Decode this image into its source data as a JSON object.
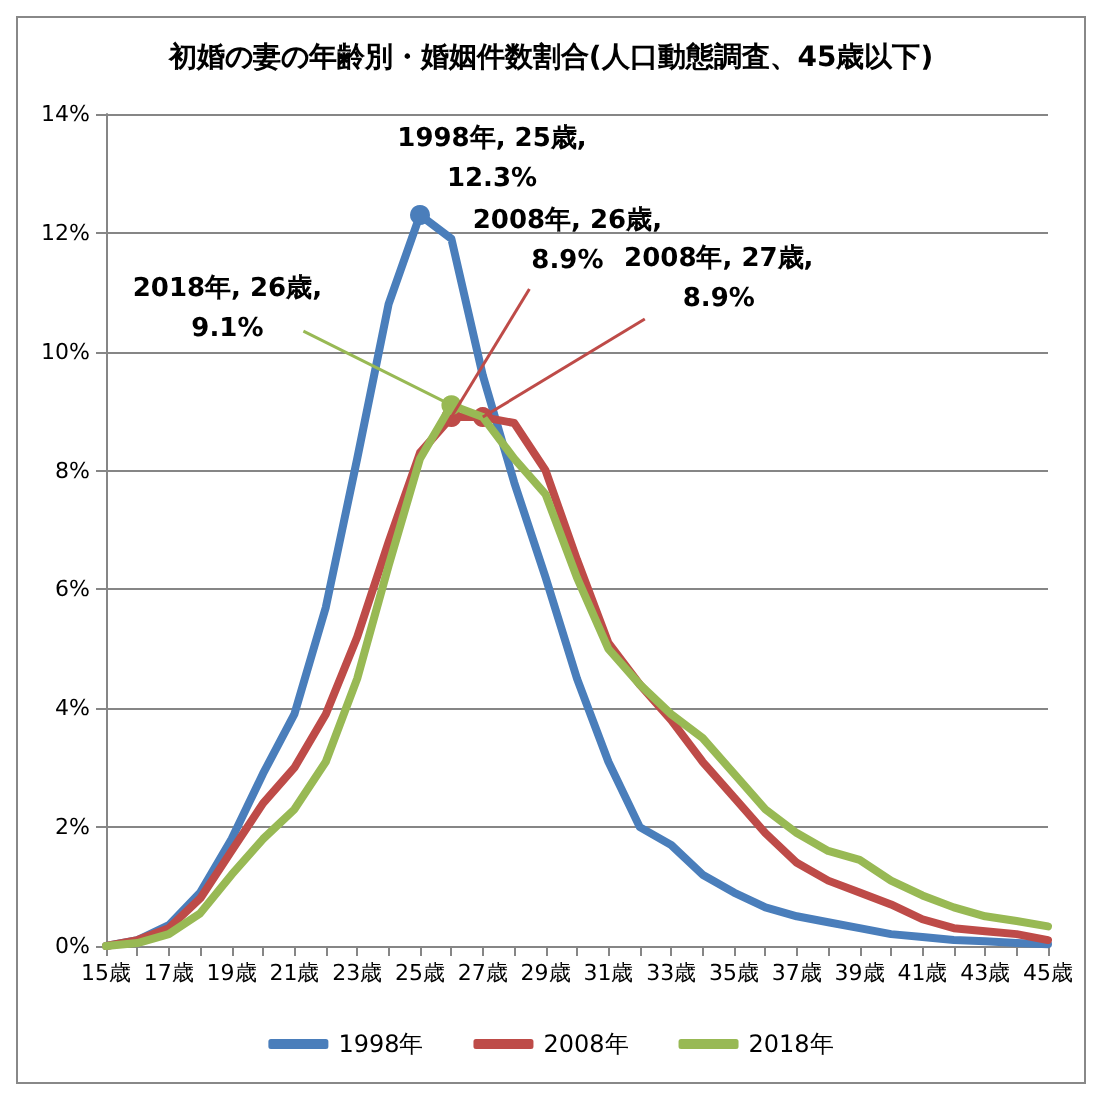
{
  "chart_data": {
    "type": "line",
    "title": "初婚の妻の年齢別・婚姻件数割合(人口動態調査、45歳以下)",
    "x": [
      15,
      16,
      17,
      18,
      19,
      20,
      21,
      22,
      23,
      24,
      25,
      26,
      27,
      28,
      29,
      30,
      31,
      32,
      33,
      34,
      35,
      36,
      37,
      38,
      39,
      40,
      41,
      42,
      43,
      44,
      45
    ],
    "series": [
      {
        "name": "1998年",
        "color": "#4a7ebb",
        "values": [
          0.0,
          0.1,
          0.35,
          0.9,
          1.8,
          2.9,
          3.9,
          5.7,
          8.2,
          10.8,
          12.3,
          11.9,
          9.6,
          7.8,
          6.2,
          4.5,
          3.1,
          2.0,
          1.7,
          1.2,
          0.9,
          0.65,
          0.5,
          0.4,
          0.3,
          0.2,
          0.15,
          0.1,
          0.08,
          0.05,
          0.03
        ]
      },
      {
        "name": "2008年",
        "color": "#be4b48",
        "values": [
          0.0,
          0.1,
          0.3,
          0.8,
          1.6,
          2.4,
          3.0,
          3.9,
          5.2,
          6.8,
          8.3,
          8.9,
          8.9,
          8.8,
          8.0,
          6.5,
          5.1,
          4.4,
          3.8,
          3.1,
          2.5,
          1.9,
          1.4,
          1.1,
          0.9,
          0.7,
          0.45,
          0.3,
          0.25,
          0.2,
          0.1
        ]
      },
      {
        "name": "2018年",
        "color": "#98b954",
        "values": [
          0.0,
          0.05,
          0.2,
          0.55,
          1.2,
          1.8,
          2.3,
          3.1,
          4.5,
          6.4,
          8.2,
          9.1,
          8.9,
          8.2,
          7.6,
          6.2,
          5.0,
          4.4,
          3.9,
          3.5,
          2.9,
          2.3,
          1.9,
          1.6,
          1.45,
          1.1,
          0.85,
          0.65,
          0.5,
          0.42,
          0.33
        ]
      }
    ],
    "xlim": [
      15,
      45
    ],
    "xticks": [
      {
        "value": 15,
        "label": "15歳"
      },
      {
        "value": 16,
        "label": null
      },
      {
        "value": 17,
        "label": "17歳"
      },
      {
        "value": 18,
        "label": null
      },
      {
        "value": 19,
        "label": "19歳"
      },
      {
        "value": 20,
        "label": null
      },
      {
        "value": 21,
        "label": "21歳"
      },
      {
        "value": 22,
        "label": null
      },
      {
        "value": 23,
        "label": "23歳"
      },
      {
        "value": 24,
        "label": null
      },
      {
        "value": 25,
        "label": "25歳"
      },
      {
        "value": 26,
        "label": null
      },
      {
        "value": 27,
        "label": "27歳"
      },
      {
        "value": 28,
        "label": null
      },
      {
        "value": 29,
        "label": "29歳"
      },
      {
        "value": 30,
        "label": null
      },
      {
        "value": 31,
        "label": "31歳"
      },
      {
        "value": 32,
        "label": null
      },
      {
        "value": 33,
        "label": "33歳"
      },
      {
        "value": 34,
        "label": null
      },
      {
        "value": 35,
        "label": "35歳"
      },
      {
        "value": 36,
        "label": null
      },
      {
        "value": 37,
        "label": "37歳"
      },
      {
        "value": 38,
        "label": null
      },
      {
        "value": 39,
        "label": "39歳"
      },
      {
        "value": 40,
        "label": null
      },
      {
        "value": 41,
        "label": "41歳"
      },
      {
        "value": 42,
        "label": null
      },
      {
        "value": 43,
        "label": "43歳"
      },
      {
        "value": 44,
        "label": null
      },
      {
        "value": 45,
        "label": "45歳"
      }
    ],
    "ylim": [
      0,
      14
    ],
    "yticks": [
      {
        "value": 0,
        "label": "0%"
      },
      {
        "value": 2,
        "label": "2%"
      },
      {
        "value": 4,
        "label": "4%"
      },
      {
        "value": 6,
        "label": "6%"
      },
      {
        "value": 8,
        "label": "8%"
      },
      {
        "value": 10,
        "label": "10%"
      },
      {
        "value": 12,
        "label": "12%"
      },
      {
        "value": 14,
        "label": "14%"
      }
    ],
    "annotations": [
      {
        "text": "1998年, 25歳,\n12.3%",
        "x": 25,
        "y": 12.3
      },
      {
        "text": "2008年, 26歳,\n8.9%",
        "x": 26,
        "y": 8.9
      },
      {
        "text": "2008年, 27歳,\n8.9%",
        "x": 27,
        "y": 8.9
      },
      {
        "text": "2018年, 26歳,\n9.1%",
        "x": 26,
        "y": 9.1
      }
    ],
    "grid": "y",
    "legend": "bottom",
    "marker": "none",
    "line_style": "solid"
  }
}
